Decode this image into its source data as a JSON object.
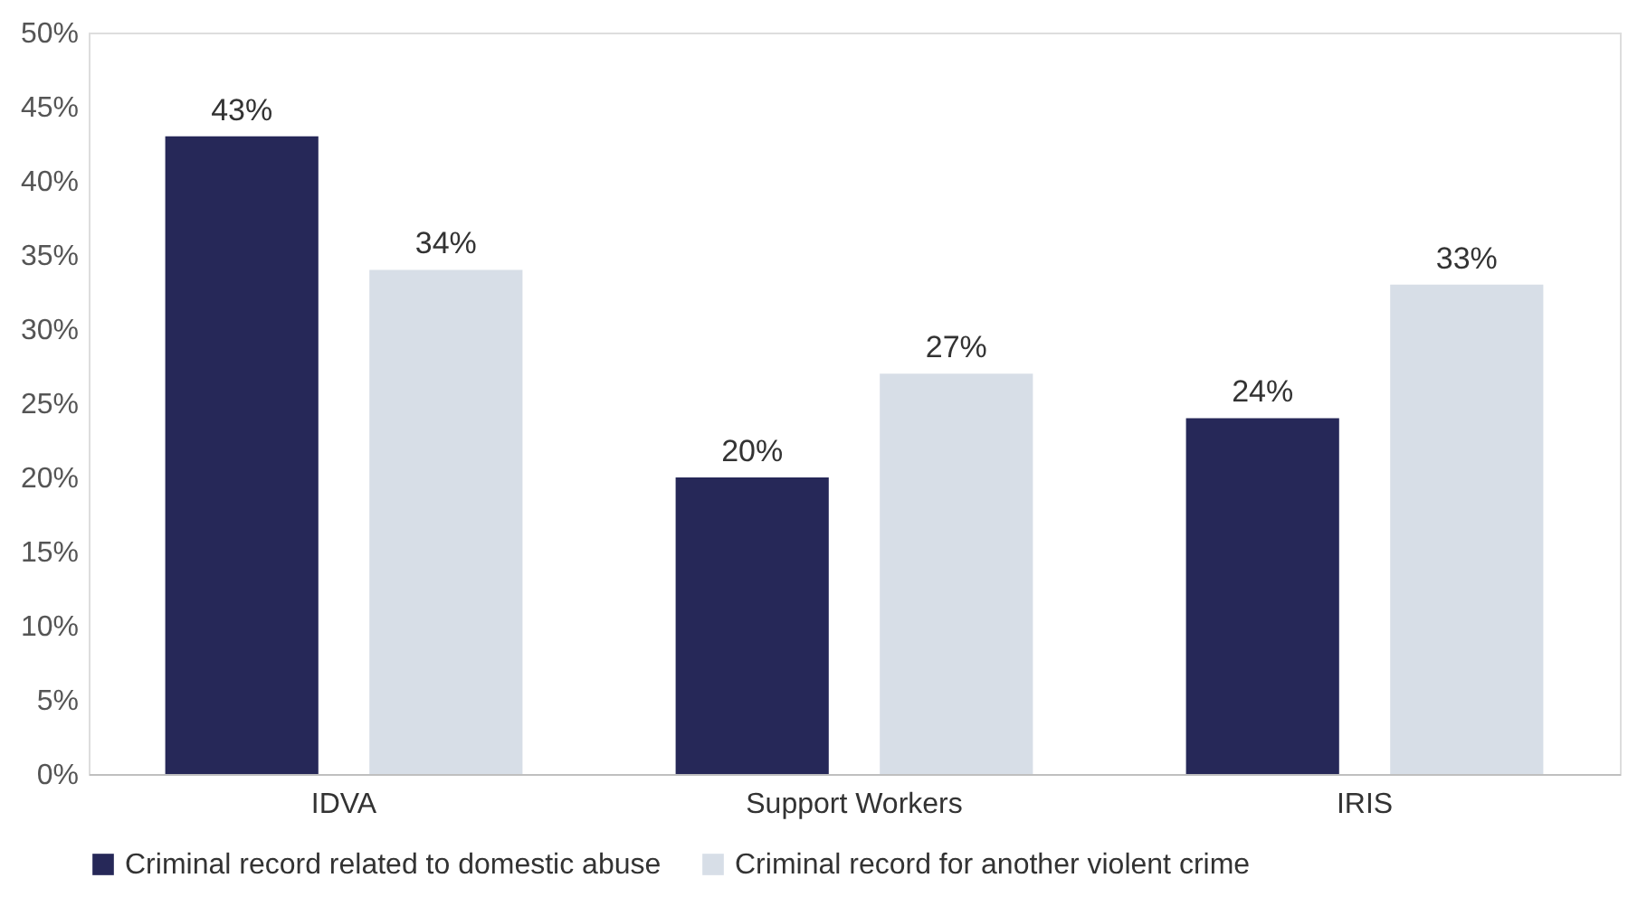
{
  "chart_data": {
    "type": "bar",
    "categories": [
      "IDVA",
      "Support Workers",
      "IRIS"
    ],
    "series": [
      {
        "name": "Criminal record related to domestic abuse",
        "color": "#262858",
        "values": [
          43,
          20,
          24
        ],
        "value_labels": [
          "43%",
          "20%",
          "24%"
        ]
      },
      {
        "name": "Criminal record for another violent crime",
        "color": "#d7dee7",
        "values": [
          34,
          27,
          33
        ],
        "value_labels": [
          "34%",
          "27%",
          "33%"
        ]
      }
    ],
    "ylim": [
      0,
      50
    ],
    "yticks": [
      {
        "value": 0,
        "label": "0%"
      },
      {
        "value": 5,
        "label": "5%"
      },
      {
        "value": 10,
        "label": "10%"
      },
      {
        "value": 15,
        "label": "15%"
      },
      {
        "value": 20,
        "label": "20%"
      },
      {
        "value": 25,
        "label": "25%"
      },
      {
        "value": 30,
        "label": "30%"
      },
      {
        "value": 35,
        "label": "35%"
      },
      {
        "value": 40,
        "label": "40%"
      },
      {
        "value": 45,
        "label": "45%"
      },
      {
        "value": 50,
        "label": "50%"
      }
    ],
    "grid": false,
    "legend": "bottom"
  }
}
